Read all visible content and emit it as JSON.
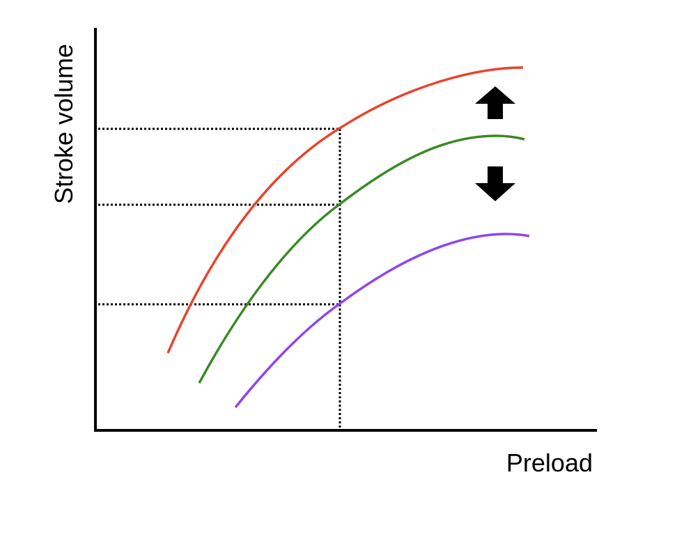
{
  "y_axis": {
    "label": "Stroke volume"
  },
  "x_axis": {
    "label": "Preload"
  }
}
